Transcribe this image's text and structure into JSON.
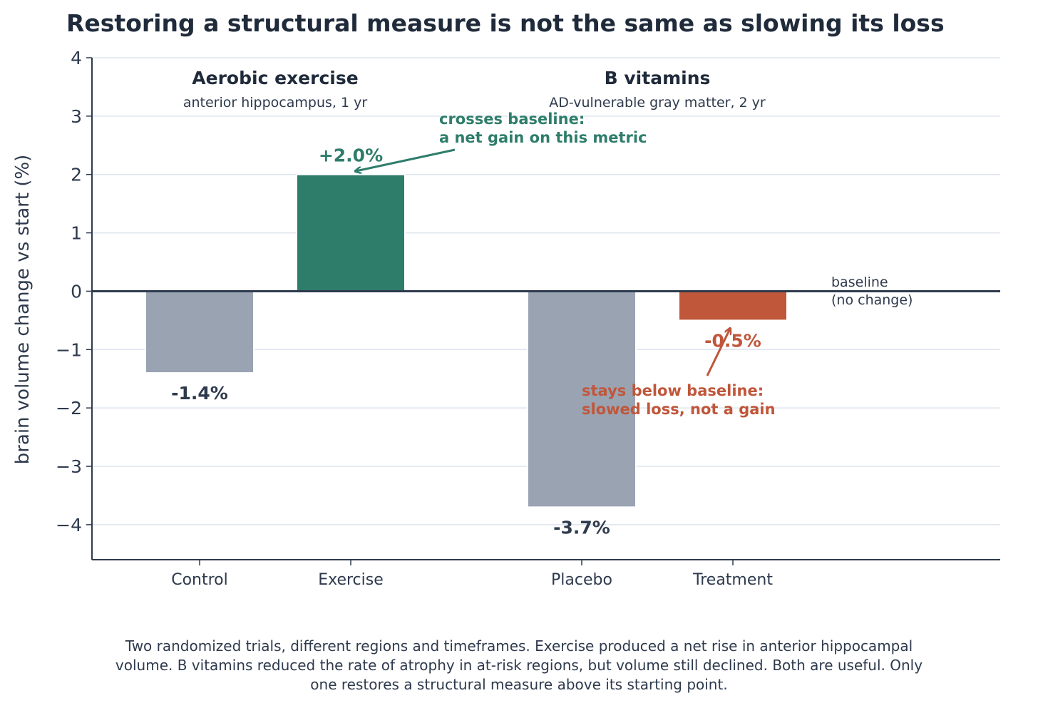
{
  "chart_data": {
    "type": "bar",
    "title": "Restoring a structural measure is not the same as slowing its loss",
    "ylabel": "brain volume change vs start (%)",
    "ylim": [
      -4.6,
      4
    ],
    "yticks": [
      "4",
      "3",
      "2",
      "1",
      "0",
      "−1",
      "−2",
      "−3",
      "−4"
    ],
    "grid": true,
    "categories": [
      "Control",
      "Exercise",
      "Placebo",
      "Treatment"
    ],
    "values": [
      -1.4,
      2.0,
      -3.7,
      -0.5
    ],
    "value_labels": [
      "-1.4%",
      "+2.0%",
      "-3.7%",
      "-0.5%"
    ],
    "colors": [
      "#9aa3b2",
      "#2e7d6b",
      "#9aa3b2",
      "#c0563a"
    ],
    "value_label_colors": [
      "#2e3a4d",
      "#2e7d6b",
      "#2e3a4d",
      "#c0563a"
    ],
    "groups": [
      {
        "title": "Aerobic exercise",
        "subtitle": "anterior hippocampus, 1 yr"
      },
      {
        "title": "B vitamins",
        "subtitle": "AD-vulnerable gray matter, 2 yr"
      }
    ],
    "baseline_note": [
      "baseline",
      "(no change)"
    ],
    "annotations": [
      {
        "lines": [
          "crosses baseline:",
          "a net gain on this metric"
        ],
        "color": "#2e7d6b"
      },
      {
        "lines": [
          "stays below baseline:",
          "slowed loss, not a gain"
        ],
        "color": "#c0563a"
      }
    ]
  },
  "caption": [
    "Two randomized trials, different regions and timeframes. Exercise produced a net rise in anterior hippocampal",
    "volume. B vitamins reduced the rate of atrophy in at-risk regions, but volume still declined. Both are useful. Only",
    "one restores a structural measure above its starting point."
  ]
}
